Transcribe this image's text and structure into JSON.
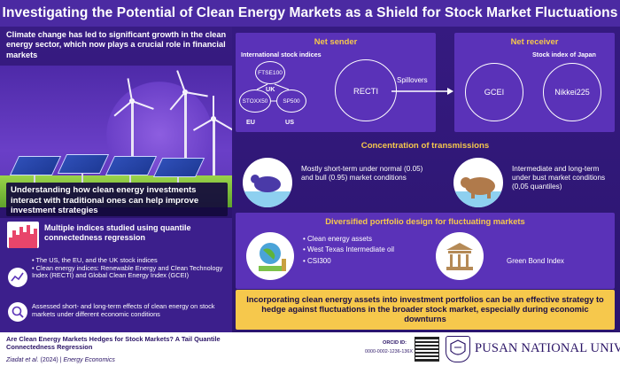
{
  "header": {
    "title": "Investigating the Potential of Clean Energy Markets as a Shield for Stock Market Fluctuations"
  },
  "left": {
    "intro": "Climate change has led to significant growth in the clean energy sector, which now plays a crucial role in financial markets",
    "callout": "Understanding how clean energy investments interact with traditional ones can help improve investment strategies",
    "multi_indices": "Multiple indices studied using quantile connectedness regression",
    "bullets": [
      "• The US, the EU, and the UK stock indices",
      "• Clean energy indices: Renewable Energy and Clean Technology Index (RECTI) and Global Clean Energy Index (GCEI)"
    ],
    "assessed": "Assessed short- and long-term effects of clean energy on stock markets under different economic conditions"
  },
  "sender": {
    "heading": "Net sender",
    "sublabel": "International stock indices",
    "ftse": "FTSE100",
    "uk": "UK",
    "stoxx": "STOXX50",
    "sp": "SP500",
    "eu": "EU",
    "us": "US",
    "recti": "RECTI"
  },
  "spillovers": "Spillovers",
  "receiver": {
    "heading": "Net receiver",
    "sublabel": "Stock index of Japan",
    "gcei": "GCEI",
    "nikkei": "Nikkei225"
  },
  "concentration": {
    "heading": "Concentration of transmissions",
    "bull_text": "Mostly short-term under normal (0.05) and bull (0.95) market conditions",
    "bear_text": "Intermediate and long-term under bust market conditions (0,05 quantiles)"
  },
  "diversified": {
    "heading": "Diversified portfolio design for fluctuating markets",
    "items": [
      "• Clean energy assets",
      "• West Texas Intermediate oil",
      "• CSI300"
    ],
    "green_bond": "Green Bond Index"
  },
  "conclusion": "Incorporating clean energy assets into investment portfolios can be an effective strategy to hedge against fluctuations in the broader stock market, especially during economic downturns",
  "footer": {
    "paper_title": "Are Clean Energy Markets Hedges for Stock Markets? A Tail Quantile Connectedness Regression",
    "authors": "Ziadat et al.",
    "year_sep": " (2024) | ",
    "journal": "Energy Economics",
    "orcid_label": "ORCID ID:",
    "orcid_id": "0000-0002-1236-136X",
    "university": "PUSAN NATIONAL UNIVERSITY"
  },
  "colors": {
    "accent": "#f6c84c",
    "purple": "#5a32b8",
    "dark": "#2a1466"
  }
}
